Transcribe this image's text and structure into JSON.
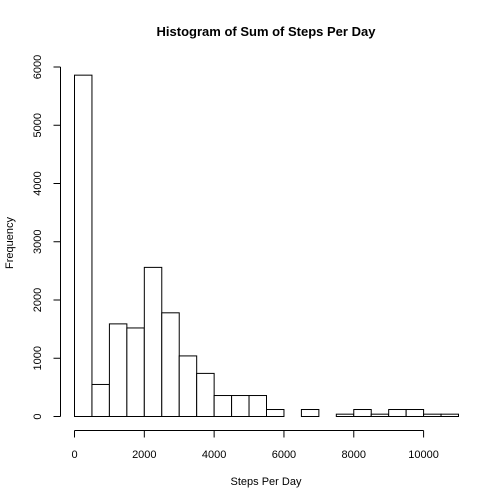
{
  "chart_data": {
    "type": "bar",
    "title": "Histogram of Sum of Steps Per Day",
    "xlabel": "Steps Per Day",
    "ylabel": "Frequency",
    "xlim": [
      0,
      11000
    ],
    "ylim": [
      0,
      6000
    ],
    "bin_width": 500,
    "bins": [
      {
        "start": 0,
        "end": 500,
        "count": 5860
      },
      {
        "start": 500,
        "end": 1000,
        "count": 550
      },
      {
        "start": 1000,
        "end": 1500,
        "count": 1590
      },
      {
        "start": 1500,
        "end": 2000,
        "count": 1520
      },
      {
        "start": 2000,
        "end": 2500,
        "count": 2560
      },
      {
        "start": 2500,
        "end": 3000,
        "count": 1780
      },
      {
        "start": 3000,
        "end": 3500,
        "count": 1040
      },
      {
        "start": 3500,
        "end": 4000,
        "count": 740
      },
      {
        "start": 4000,
        "end": 4500,
        "count": 360
      },
      {
        "start": 4500,
        "end": 5000,
        "count": 360
      },
      {
        "start": 5000,
        "end": 5500,
        "count": 360
      },
      {
        "start": 5500,
        "end": 6000,
        "count": 120
      },
      {
        "start": 6000,
        "end": 6500,
        "count": 0
      },
      {
        "start": 6500,
        "end": 7000,
        "count": 120
      },
      {
        "start": 7000,
        "end": 7500,
        "count": 0
      },
      {
        "start": 7500,
        "end": 8000,
        "count": 40
      },
      {
        "start": 8000,
        "end": 8500,
        "count": 120
      },
      {
        "start": 8500,
        "end": 9000,
        "count": 40
      },
      {
        "start": 9000,
        "end": 9500,
        "count": 120
      },
      {
        "start": 9500,
        "end": 10000,
        "count": 120
      },
      {
        "start": 10000,
        "end": 10500,
        "count": 40
      },
      {
        "start": 10500,
        "end": 11000,
        "count": 40
      }
    ],
    "x_ticks": [
      0,
      2000,
      4000,
      6000,
      8000,
      10000
    ],
    "y_ticks": [
      0,
      1000,
      2000,
      3000,
      4000,
      5000,
      6000
    ],
    "grid": false,
    "legend": "none"
  }
}
